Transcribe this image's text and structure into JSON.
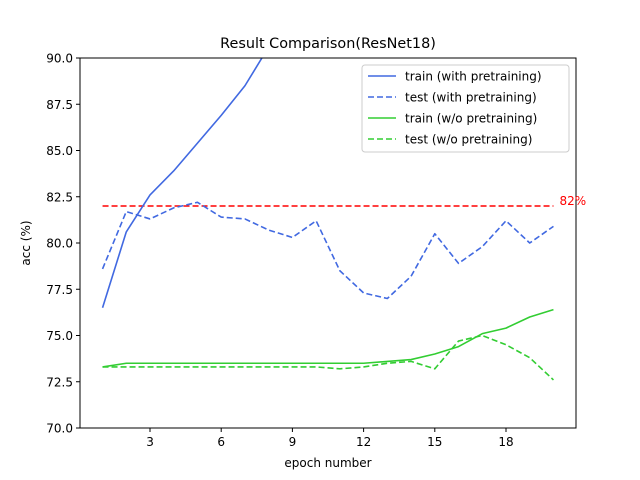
{
  "chart_data": {
    "type": "line",
    "title": "Result Comparison(ResNet18)",
    "xlabel": "epoch number",
    "ylabel": "acc (%)",
    "xlim": [
      0.05,
      20.95
    ],
    "ylim": [
      70.0,
      90.0
    ],
    "xticks": [
      3,
      6,
      9,
      12,
      15,
      18
    ],
    "yticks": [
      70.0,
      72.5,
      75.0,
      77.5,
      80.0,
      82.5,
      85.0,
      87.5,
      90.0
    ],
    "grid": false,
    "legend_position": "top-right",
    "x": [
      1,
      2,
      3,
      4,
      5,
      6,
      7,
      8,
      9,
      10,
      11,
      12,
      13,
      14,
      15,
      16,
      17,
      18,
      19,
      20
    ],
    "series": [
      {
        "name": "train (with pretraining)",
        "color": "#4169e1",
        "style": "solid",
        "values": [
          76.5,
          80.6,
          82.6,
          83.9,
          85.4,
          86.9,
          88.5,
          90.6,
          null,
          null,
          null,
          null,
          null,
          null,
          null,
          null,
          null,
          null,
          null,
          null
        ]
      },
      {
        "name": "test (with pretraining)",
        "color": "#4169e1",
        "style": "dashed",
        "values": [
          78.6,
          81.7,
          81.3,
          81.9,
          82.2,
          81.4,
          81.3,
          80.7,
          80.3,
          81.2,
          78.5,
          77.3,
          77.0,
          78.2,
          80.5,
          78.9,
          79.8,
          81.2,
          80.0,
          80.9
        ]
      },
      {
        "name": "train (w/o pretraining)",
        "color": "#32cd32",
        "style": "solid",
        "values": [
          73.3,
          73.5,
          73.5,
          73.5,
          73.5,
          73.5,
          73.5,
          73.5,
          73.5,
          73.5,
          73.5,
          73.5,
          73.6,
          73.7,
          74.0,
          74.4,
          75.1,
          75.4,
          76.0,
          76.4
        ]
      },
      {
        "name": "test (w/o pretraining)",
        "color": "#32cd32",
        "style": "dashed",
        "values": [
          73.3,
          73.3,
          73.3,
          73.3,
          73.3,
          73.3,
          73.3,
          73.3,
          73.3,
          73.3,
          73.2,
          73.3,
          73.5,
          73.6,
          73.2,
          74.7,
          75.0,
          74.5,
          73.8,
          72.6
        ]
      }
    ],
    "reference_line": {
      "y": 82,
      "color": "#ff0000",
      "style": "dashed",
      "label": "82%",
      "x_range": [
        1,
        20
      ]
    }
  }
}
